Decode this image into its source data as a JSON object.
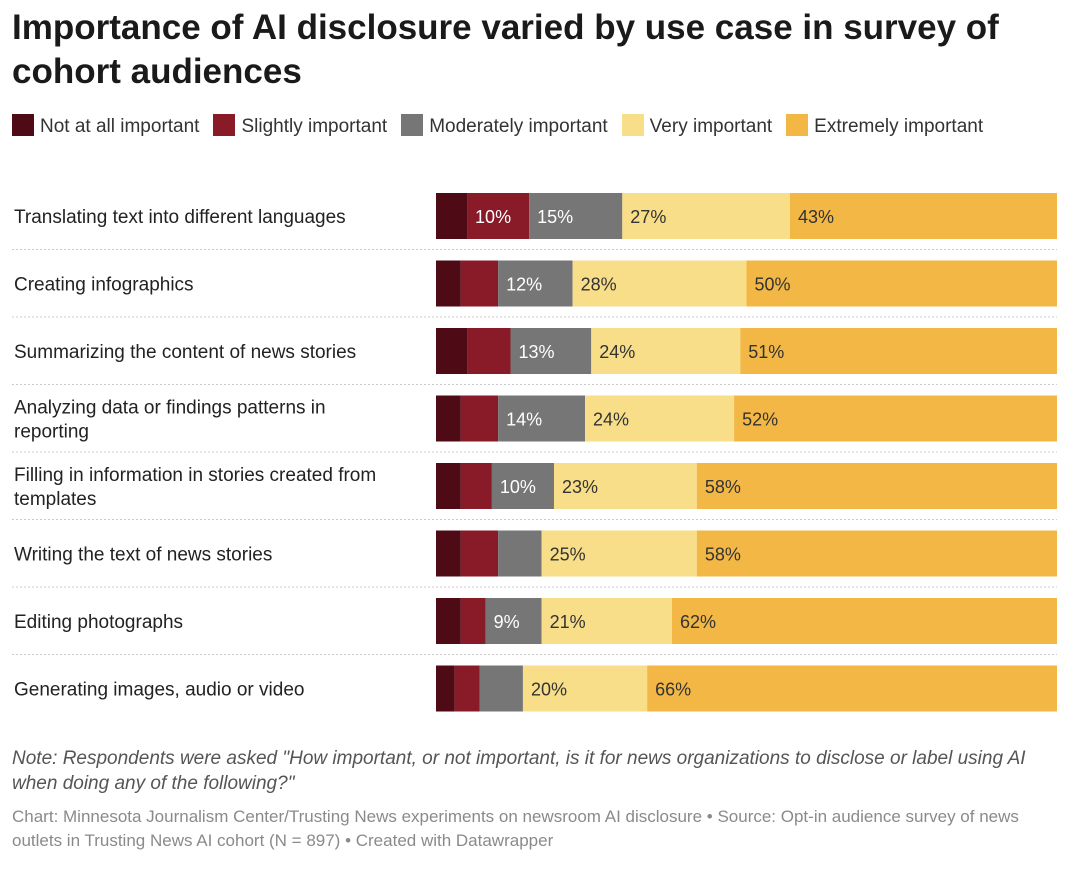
{
  "chart_data": {
    "type": "bar",
    "orientation": "horizontal",
    "stacked": true,
    "normalized": true,
    "title": "Importance of AI disclosure varied by use case in survey of cohort audiences",
    "legend_position": "top",
    "grid": false,
    "xlim": [
      0,
      100
    ],
    "categories": [
      "Translating text into different languages",
      "Creating infographics",
      "Summarizing the content of news stories",
      "Analyzing data or findings patterns in reporting",
      "Filling in information in stories created from templates",
      "Writing the text of news stories",
      "Editing photographs",
      "Generating images, audio or video"
    ],
    "series": [
      {
        "name": "Not at all important",
        "color": "#4e0b16",
        "values": [
          5,
          4,
          5,
          4,
          4,
          4,
          4,
          3
        ]
      },
      {
        "name": "Slightly important",
        "color": "#891a27",
        "values": [
          10,
          6,
          7,
          6,
          5,
          6,
          4,
          4
        ]
      },
      {
        "name": "Moderately important",
        "color": "#767676",
        "values": [
          15,
          12,
          13,
          14,
          10,
          7,
          9,
          7
        ]
      },
      {
        "name": "Very important",
        "color": "#f8de88",
        "values": [
          27,
          28,
          24,
          24,
          23,
          25,
          21,
          20
        ]
      },
      {
        "name": "Extremely important",
        "color": "#f3b745",
        "values": [
          43,
          50,
          51,
          52,
          58,
          58,
          62,
          66
        ]
      }
    ],
    "note": "Note: Respondents were asked \"How important, or not important, is it for news organizations to disclose or label using AI when doing any of the following?\"",
    "source": "Chart: Minnesota Journalism Center/Trusting News experiments on newsroom AI disclosure • Source: Opt-in audience survey of news outlets in Trusting News AI cohort (N = 897) • Created with Datawrapper"
  }
}
